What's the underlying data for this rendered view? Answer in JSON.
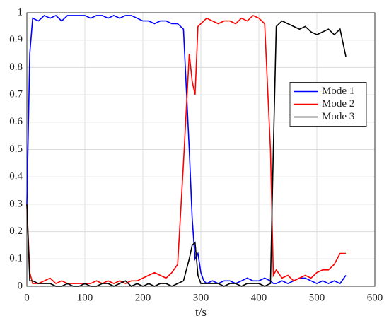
{
  "chart_data": {
    "type": "line",
    "xlabel": "t/s",
    "x": [
      0,
      5,
      10,
      20,
      30,
      40,
      50,
      60,
      70,
      80,
      90,
      100,
      110,
      120,
      130,
      140,
      150,
      160,
      170,
      180,
      190,
      200,
      210,
      220,
      230,
      240,
      250,
      260,
      270,
      280,
      285,
      290,
      295,
      300,
      305,
      310,
      320,
      330,
      340,
      350,
      360,
      370,
      380,
      390,
      400,
      410,
      420,
      425,
      430,
      440,
      450,
      460,
      470,
      480,
      490,
      500,
      510,
      520,
      530,
      540,
      550
    ],
    "series": [
      {
        "name": "Mode 1",
        "color": "#0000ff",
        "values": [
          0.3,
          0.85,
          0.98,
          0.97,
          0.99,
          0.98,
          0.99,
          0.97,
          0.99,
          0.99,
          0.99,
          0.99,
          0.98,
          0.99,
          0.99,
          0.98,
          0.99,
          0.98,
          0.99,
          0.99,
          0.98,
          0.97,
          0.97,
          0.96,
          0.97,
          0.97,
          0.96,
          0.96,
          0.94,
          0.5,
          0.25,
          0.1,
          0.12,
          0.05,
          0.02,
          0.01,
          0.02,
          0.01,
          0.02,
          0.02,
          0.01,
          0.02,
          0.03,
          0.02,
          0.02,
          0.03,
          0.02,
          0.01,
          0.01,
          0.02,
          0.01,
          0.02,
          0.03,
          0.03,
          0.02,
          0.01,
          0.02,
          0.01,
          0.02,
          0.01,
          0.04
        ]
      },
      {
        "name": "Mode 2",
        "color": "#ff0000",
        "values": [
          0.3,
          0.05,
          0.01,
          0.01,
          0.02,
          0.03,
          0.01,
          0.02,
          0.01,
          0.01,
          0.01,
          0.01,
          0.01,
          0.02,
          0.01,
          0.02,
          0.01,
          0.02,
          0.01,
          0.02,
          0.02,
          0.03,
          0.04,
          0.05,
          0.04,
          0.03,
          0.05,
          0.08,
          0.45,
          0.85,
          0.75,
          0.7,
          0.95,
          0.96,
          0.97,
          0.98,
          0.97,
          0.96,
          0.97,
          0.97,
          0.96,
          0.98,
          0.97,
          0.99,
          0.98,
          0.96,
          0.5,
          0.04,
          0.06,
          0.03,
          0.04,
          0.02,
          0.03,
          0.04,
          0.03,
          0.05,
          0.06,
          0.06,
          0.08,
          0.12,
          0.12
        ]
      },
      {
        "name": "Mode 3",
        "color": "#000000",
        "values": [
          0.3,
          0.02,
          0.02,
          0.01,
          0.01,
          0.01,
          0,
          0,
          0.01,
          0,
          0,
          0.01,
          0,
          0,
          0.01,
          0.01,
          0,
          0.01,
          0.02,
          0,
          0.01,
          0,
          0.01,
          0,
          0.01,
          0.01,
          0,
          0.01,
          0.02,
          0.1,
          0.15,
          0.16,
          0.04,
          0.01,
          0.01,
          0.01,
          0.01,
          0.01,
          0,
          0.01,
          0.01,
          0,
          0.01,
          0.01,
          0.01,
          0,
          0.01,
          0.5,
          0.95,
          0.97,
          0.96,
          0.95,
          0.94,
          0.95,
          0.93,
          0.92,
          0.93,
          0.94,
          0.92,
          0.94,
          0.84
        ]
      }
    ],
    "xlim": [
      0,
      600
    ],
    "xticks": [
      0,
      100,
      200,
      300,
      400,
      500,
      600
    ],
    "ylim": [
      0,
      1
    ],
    "yticks": [
      0,
      0.1,
      0.2,
      0.3,
      0.4,
      0.5,
      0.6,
      0.7,
      0.8,
      0.9,
      1
    ],
    "grid": true,
    "legend": "right"
  }
}
